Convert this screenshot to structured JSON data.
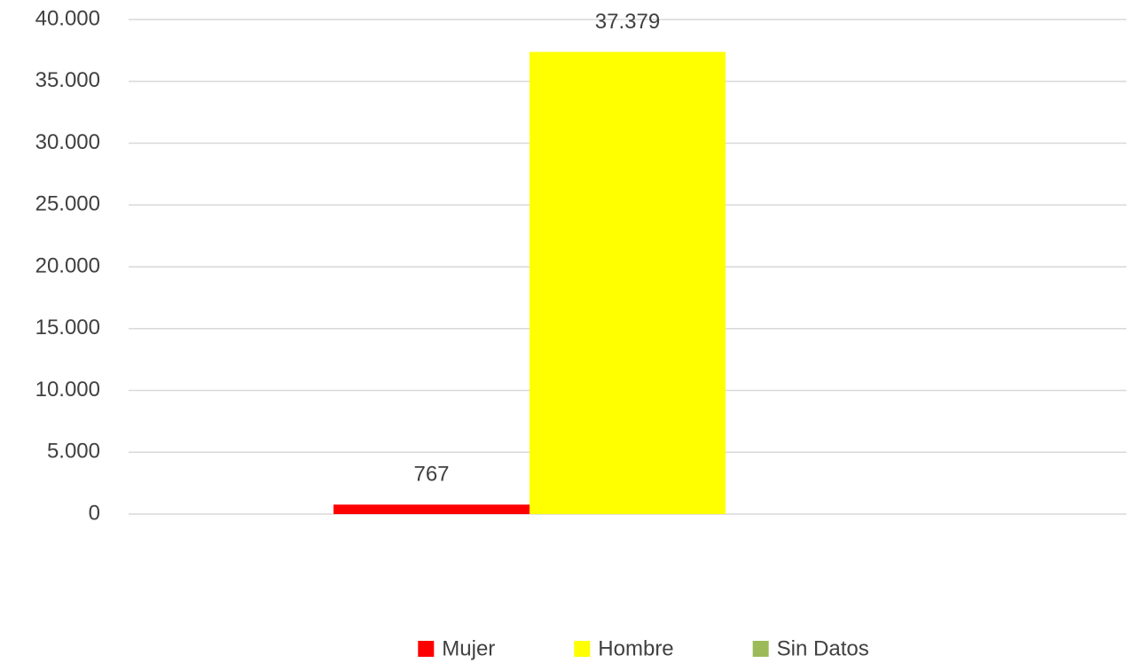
{
  "chart_data": {
    "type": "bar",
    "categories": [
      null
    ],
    "series": [
      {
        "name": "Mujer",
        "color": "#ff0000",
        "values": [
          767
        ]
      },
      {
        "name": "Hombre",
        "color": "#ffff00",
        "values": [
          37379
        ],
        "value_labels": [
          "37.379"
        ]
      },
      {
        "name": "Sin Datos",
        "color": "#9bbb59",
        "values": [
          null
        ]
      }
    ],
    "ylim": [
      0,
      40000
    ],
    "yticks": [
      0,
      {
        "value": 5000,
        "label": "5.000"
      },
      {
        "value": 10000,
        "label": "10.000"
      },
      {
        "value": 15000,
        "label": "15.000"
      },
      {
        "value": 20000,
        "label": "20.000"
      },
      {
        "value": 25000,
        "label": "25.000"
      },
      {
        "value": 30000,
        "label": "30.000"
      },
      {
        "value": 35000,
        "label": "35.000"
      },
      {
        "value": 40000,
        "label": "40.000"
      }
    ],
    "grid": true,
    "legend": "bottom"
  }
}
